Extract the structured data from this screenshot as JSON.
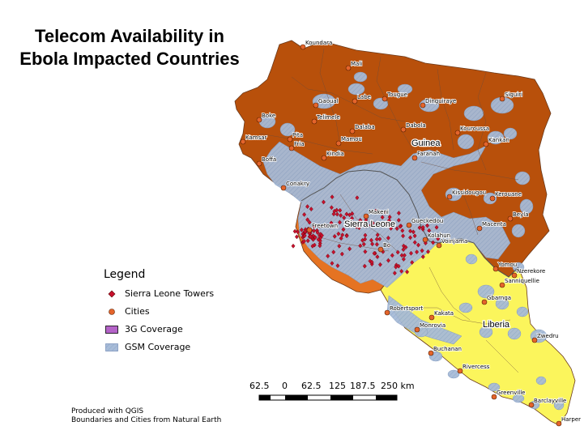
{
  "title": "Telecom Availability in Ebola Impacted Countries",
  "title_lines": [
    "Telecom Availability in",
    "Ebola Impacted Countries"
  ],
  "countries": [
    {
      "name": "Guinea",
      "color": "#b8500b"
    },
    {
      "name": "Sierra Leone",
      "color": "#e57322"
    },
    {
      "name": "Liberia",
      "color": "#fbf55c"
    }
  ],
  "cities": [
    "Koundara",
    "Mali",
    "Gaoual",
    "Labe",
    "Tougue",
    "Dinguiraye",
    "Siguiri",
    "Boke",
    "Telimele",
    "Pita",
    "Dalaba",
    "Mamou",
    "Dabola",
    "Kouroussa",
    "Kankan",
    "Kamsar",
    "Fria",
    "Boffa",
    "Kindia",
    "Faranah",
    "Conakry",
    "Kissidougou",
    "Kerouane",
    "Makeni",
    "Gueckedou",
    "Beyla",
    "Freetown",
    "Macenta",
    "Kolahun",
    "Voinjama",
    "Bo",
    "Yomou",
    "Nzerekore",
    "Sanniquellie",
    "Gbarnga",
    "Robertsport",
    "Kakata",
    "Monrovia",
    "Zwedru",
    "Buchanan",
    "Rivercess",
    "Greenville",
    "Barclayville",
    "Harper"
  ],
  "legend": {
    "heading": "Legend",
    "items": [
      {
        "label": "Sierra Leone Towers",
        "symbol": "diamond",
        "color": "#c8102e"
      },
      {
        "label": "Cities",
        "symbol": "circle",
        "color": "#e4642b"
      },
      {
        "label": "3G Coverage",
        "symbol": "box",
        "color": "#b463c8"
      },
      {
        "label": "GSM Coverage",
        "symbol": "hatched-box",
        "color": "#a8bcd8"
      }
    ]
  },
  "scale_bar": {
    "labels": [
      "62.5",
      "0",
      "62.5",
      "125",
      "187.5",
      "250 km"
    ]
  },
  "credits": [
    "Produced with QGIS",
    "Boundaries and Cities from Natural Earth"
  ],
  "colors": {
    "gsm_coverage": "#a8bcd8",
    "tower": "#c8102e",
    "city": "#e4642b",
    "border": "#555555"
  }
}
